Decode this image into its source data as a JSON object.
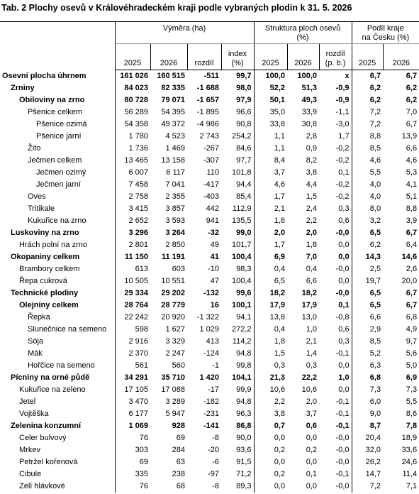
{
  "title": "Tab. 2 Plochy osevů v Královéhradeckém kraji podle vybraných plodin k 31. 5. 2026",
  "header": {
    "groups": {
      "area": "Výměra (ha)",
      "structure": [
        "Struktura ploch osevů",
        "(%)"
      ],
      "share": [
        "Podíl  kraje",
        "na Česku (%)"
      ]
    },
    "columns": [
      "2025",
      "2026",
      "rozdíl",
      [
        "index",
        "(%)"
      ],
      "2025",
      "2026",
      [
        "rozdíl",
        "(p. b.)"
      ],
      "2025",
      "2026"
    ]
  },
  "rows": [
    {
      "label": "Osevní plocha úhrnem",
      "level": 0,
      "bold": true,
      "cells": [
        "161 026",
        "160 515",
        "-511",
        "99,7",
        "100,0",
        "100,0",
        "x",
        "6,7",
        "6,7"
      ]
    },
    {
      "label": "Zrniny",
      "level": 1,
      "bold": true,
      "cells": [
        "84 023",
        "82 335",
        "-1 688",
        "98,0",
        "52,2",
        "51,3",
        "-0,9",
        "6,2",
        "6,2"
      ]
    },
    {
      "label": "Obiloviny na zrno",
      "level": 2,
      "bold": true,
      "cells": [
        "80 728",
        "79 071",
        "-1 657",
        "97,9",
        "50,1",
        "49,3",
        "-0,9",
        "6,2",
        "6,2"
      ]
    },
    {
      "label": "Pšenice celkem",
      "level": 3,
      "bold": false,
      "cells": [
        "56 289",
        "54 395",
        "-1 895",
        "96,6",
        "35,0",
        "33,9",
        "-1,1",
        "7,2",
        "7,0"
      ]
    },
    {
      "label": "Pšenice ozimá",
      "level": 4,
      "bold": false,
      "cells": [
        "54 358",
        "49 372",
        "-4 986",
        "90,8",
        "33,8",
        "30,8",
        "-3,0",
        "7,2",
        "6,7"
      ]
    },
    {
      "label": "Pšenice jarní",
      "level": 4,
      "bold": false,
      "cells": [
        "1 780",
        "4 523",
        "2 743",
        "254,2",
        "1,1",
        "2,8",
        "1,7",
        "8,8",
        "13,9"
      ]
    },
    {
      "label": "Žito",
      "level": 3,
      "bold": false,
      "cells": [
        "1 736",
        "1 469",
        "-267",
        "84,6",
        "1,1",
        "0,9",
        "-0,2",
        "8,5",
        "6,6"
      ]
    },
    {
      "label": "Ječmen celkem",
      "level": 3,
      "bold": false,
      "cells": [
        "13 465",
        "13 158",
        "-307",
        "97,7",
        "8,4",
        "8,2",
        "-0,2",
        "4,6",
        "4,6"
      ]
    },
    {
      "label": "Ječmen ozimý",
      "level": 4,
      "bold": false,
      "cells": [
        "6 007",
        "6 117",
        "110",
        "101,8",
        "3,7",
        "3,8",
        "0,1",
        "5,5",
        "5,3"
      ]
    },
    {
      "label": "Ječmen jarní",
      "level": 4,
      "bold": false,
      "cells": [
        "7 458",
        "7 041",
        "-417",
        "94,4",
        "4,6",
        "4,4",
        "-0,2",
        "4,0",
        "4,1"
      ]
    },
    {
      "label": "Oves",
      "level": 3,
      "bold": false,
      "cells": [
        "2 758",
        "2 355",
        "-403",
        "85,4",
        "1,7",
        "1,5",
        "-0,2",
        "4,0",
        "5,1"
      ]
    },
    {
      "label": "Tritikale",
      "level": 3,
      "bold": false,
      "cells": [
        "3 415",
        "3 857",
        "442",
        "112,9",
        "2,1",
        "2,4",
        "0,3",
        "8,0",
        "8,8"
      ]
    },
    {
      "label": "Kukuřice na zrno",
      "level": 3,
      "bold": false,
      "cells": [
        "2 652",
        "3 593",
        "941",
        "135,5",
        "1,6",
        "2,2",
        "0,6",
        "3,2",
        "3,9"
      ]
    },
    {
      "label": "Luskoviny na zrno",
      "level": 1,
      "bold": true,
      "cells": [
        "3 296",
        "3 264",
        "-32",
        "99,0",
        "2,0",
        "2,0",
        "-0,0",
        "6,5",
        "6,7"
      ]
    },
    {
      "label": "Hrách polní na zrno",
      "level": 2,
      "bold": false,
      "cells": [
        "2 801",
        "2 850",
        "49",
        "101,7",
        "1,7",
        "1,8",
        "0,0",
        "6,2",
        "6,4"
      ]
    },
    {
      "label": "Okopaniny celkem",
      "level": 1,
      "bold": true,
      "cells": [
        "11 150",
        "11 191",
        "41",
        "100,4",
        "6,9",
        "7,0",
        "0,0",
        "14,3",
        "14,6"
      ]
    },
    {
      "label": "Brambory celkem",
      "level": 2,
      "bold": false,
      "cells": [
        "613",
        "603",
        "-10",
        "98,3",
        "0,4",
        "0,4",
        "-0,0",
        "2,5",
        "2,6"
      ]
    },
    {
      "label": "Řepa cukrová",
      "level": 2,
      "bold": false,
      "cells": [
        "10 505",
        "10 551",
        "47",
        "100,4",
        "6,5",
        "6,6",
        "0,0",
        "19,7",
        "20,0"
      ]
    },
    {
      "label": "Technické plodiny",
      "level": 1,
      "bold": true,
      "cells": [
        "29 334",
        "29 202",
        "-132",
        "99,6",
        "18,2",
        "18,2",
        "-0,0",
        "6,5",
        "6,7"
      ]
    },
    {
      "label": "Olejniny celkem",
      "level": 2,
      "bold": true,
      "cells": [
        "28 764",
        "28 779",
        "16",
        "100,1",
        "17,9",
        "17,9",
        "0,1",
        "6,5",
        "6,7"
      ]
    },
    {
      "label": "Řepka",
      "level": 3,
      "bold": false,
      "cells": [
        "22 242",
        "20 920",
        "-1 322",
        "94,1",
        "13,8",
        "13,0",
        "-0,8",
        "6,6",
        "6,8"
      ]
    },
    {
      "label": "Slunečnice na semeno",
      "level": 3,
      "bold": false,
      "cells": [
        "598",
        "1 627",
        "1 029",
        "272,2",
        "0,4",
        "1,0",
        "0,6",
        "2,9",
        "4,9"
      ]
    },
    {
      "label": "Sója",
      "level": 3,
      "bold": false,
      "cells": [
        "2 916",
        "3 329",
        "413",
        "114,2",
        "1,8",
        "2,1",
        "0,3",
        "8,5",
        "9,7"
      ]
    },
    {
      "label": "Mák",
      "level": 3,
      "bold": false,
      "cells": [
        "2 370",
        "2 247",
        "-124",
        "94,8",
        "1,5",
        "1,4",
        "-0,1",
        "5,2",
        "5,6"
      ]
    },
    {
      "label": "Hořčice na semeno",
      "level": 3,
      "bold": false,
      "cells": [
        "561",
        "560",
        "-1",
        "99,8",
        "0,3",
        "0,3",
        "0,0",
        "6,3",
        "5,0"
      ]
    },
    {
      "label": "Pícniny na orné půdě",
      "level": 1,
      "bold": true,
      "cells": [
        "34 291",
        "35 710",
        "1 420",
        "104,1",
        "21,3",
        "22,2",
        "1,0",
        "6,8",
        "6,9"
      ]
    },
    {
      "label": "Kukuřice na zeleno",
      "level": 2,
      "bold": false,
      "cells": [
        "17 105",
        "17 088",
        "-17",
        "99,9",
        "10,6",
        "10,6",
        "0,0",
        "7,3",
        "7,3"
      ]
    },
    {
      "label": "Jetel",
      "level": 2,
      "bold": false,
      "cells": [
        "3 470",
        "3 289",
        "-182",
        "94,8",
        "2,2",
        "2,0",
        "-0,1",
        "6,0",
        "5,5"
      ]
    },
    {
      "label": "Vojtěška",
      "level": 2,
      "bold": false,
      "cells": [
        "6 177",
        "5 947",
        "-231",
        "96,3",
        "3,8",
        "3,7",
        "-0,1",
        "9,0",
        "8,6"
      ]
    },
    {
      "label": "Zelenina konzumní",
      "level": 1,
      "bold": true,
      "cells": [
        "1 069",
        "928",
        "-141",
        "86,8",
        "0,7",
        "0,6",
        "-0,1",
        "8,7",
        "7,8"
      ]
    },
    {
      "label": "Celer bulvový",
      "level": 2,
      "bold": false,
      "cells": [
        "76",
        "69",
        "-8",
        "90,0",
        "0,0",
        "0,0",
        "-0,0",
        "20,4",
        "18,9"
      ]
    },
    {
      "label": "Mrkev",
      "level": 2,
      "bold": false,
      "cells": [
        "303",
        "284",
        "-20",
        "93,6",
        "0,2",
        "0,2",
        "-0,0",
        "32,0",
        "33,6"
      ]
    },
    {
      "label": "Petržel kořenová",
      "level": 2,
      "bold": false,
      "cells": [
        "69",
        "63",
        "-6",
        "91,5",
        "0,0",
        "0,0",
        "-0,0",
        "26,2",
        "24,6"
      ]
    },
    {
      "label": "Cibule",
      "level": 2,
      "bold": false,
      "cells": [
        "335",
        "238",
        "-97",
        "71,2",
        "0,2",
        "0,1",
        "-0,1",
        "14,7",
        "11,4"
      ]
    },
    {
      "label": "Zelí hlávkové",
      "level": 2,
      "bold": false,
      "cells": [
        "76",
        "68",
        "-8",
        "89,3",
        "0,0",
        "0,0",
        "-0,0",
        "7,2",
        "7,1"
      ]
    }
  ]
}
